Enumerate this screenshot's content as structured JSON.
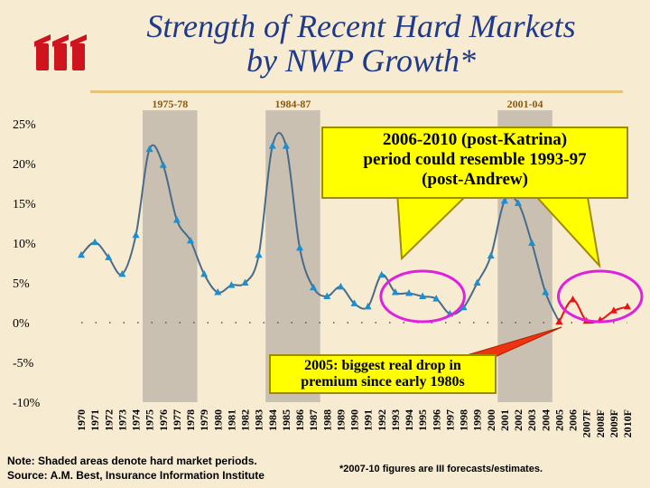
{
  "header": {
    "title_line1": "Strength of Recent Hard Markets",
    "title_line2": "by NWP Growth*"
  },
  "footer": {
    "note_line1": "Note: Shaded areas denote hard market periods.",
    "note_line2": "Source:  A.M. Best, Insurance Information Institute",
    "forecast_note": "*2007-10 figures are III  forecasts/estimates."
  },
  "callouts": {
    "main": [
      "2006-2010 (post-Katrina)",
      "period could resemble 1993-97",
      "(post-Andrew)"
    ],
    "drop": [
      "2005: biggest real drop in",
      "premium since early 1980s"
    ]
  },
  "colors": {
    "title": "#1f3a8a",
    "line": "#4a6a8a",
    "marker": "#1c8fcf",
    "forecast": "#ee1111",
    "shade": "#c9c0b2",
    "callout": "#ffff00",
    "circle": "#e020e0",
    "logo": "#d0141e"
  },
  "chart_data": {
    "type": "line",
    "title": "Strength of Recent Hard Markets by NWP Growth*",
    "ylim": [
      -10,
      25
    ],
    "yticks": [
      "25%",
      "20%",
      "15%",
      "10%",
      "5%",
      "0%",
      "-5%",
      "-10%"
    ],
    "ytick_values": [
      25,
      20,
      15,
      10,
      5,
      0,
      -5,
      -10
    ],
    "categories": [
      "1970",
      "1971",
      "1972",
      "1973",
      "1974",
      "1975",
      "1976",
      "1977",
      "1978",
      "1979",
      "1980",
      "1981",
      "1982",
      "1983",
      "1984",
      "1985",
      "1986",
      "1987",
      "1988",
      "1989",
      "1990",
      "1991",
      "1992",
      "1993",
      "1994",
      "1995",
      "1996",
      "1997",
      "1998",
      "1999",
      "2000",
      "2001",
      "2002",
      "2003",
      "2004",
      "2005",
      "2006",
      "2007F",
      "2008F",
      "2009F",
      "2010F"
    ],
    "series": [
      {
        "values": [
          8.5,
          10.1,
          8.2,
          6.1,
          11.0,
          21.8,
          19.8,
          12.9,
          10.3,
          6.1,
          3.8,
          4.7,
          5.0,
          8.5,
          22.2,
          22.2,
          9.4,
          4.4,
          3.3,
          4.5,
          2.4,
          2.0,
          6.0,
          3.8,
          3.7,
          3.3,
          3.0,
          1.1,
          1.9,
          5.0,
          8.4,
          15.3,
          15.0,
          10.0,
          3.8,
          0.1,
          null,
          null,
          null,
          null,
          null
        ]
      },
      {
        "values": [
          null,
          null,
          null,
          null,
          null,
          null,
          null,
          null,
          null,
          null,
          null,
          null,
          null,
          null,
          null,
          null,
          null,
          null,
          null,
          null,
          null,
          null,
          null,
          null,
          null,
          null,
          null,
          null,
          null,
          null,
          null,
          null,
          null,
          null,
          null,
          0.1,
          2.9,
          0.2,
          0.3,
          1.5,
          2.0
        ]
      }
    ],
    "hard_markets": [
      {
        "label": "1975-78",
        "from": "1975",
        "to": "1978"
      },
      {
        "label": "1984-87",
        "from": "1984",
        "to": "1987"
      },
      {
        "label": "2001-04",
        "from": "2001",
        "to": "2004"
      }
    ],
    "highlight_circles": [
      {
        "from": "1993",
        "to": "1997"
      },
      {
        "from": "2006",
        "to": "2010F"
      }
    ]
  }
}
